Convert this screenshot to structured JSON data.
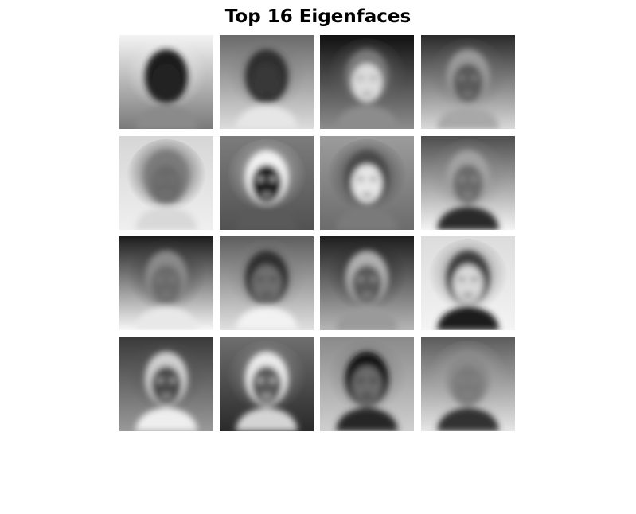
{
  "title": "Top 16 Eigenfaces",
  "grid": {
    "rows": 4,
    "cols": 4
  },
  "eigenfaces": [
    {
      "bg": [
        "#f4f4f4",
        "#7a7a7a"
      ],
      "head": "#1a1a1a",
      "face": "#222222",
      "body": "#8a8a8a",
      "glow": "#f0f0f0"
    },
    {
      "bg": [
        "#6a6a6a",
        "#dcdcdc"
      ],
      "head": "#2e2e2e",
      "face": "#383838",
      "body": "#e6e6e6",
      "glow": "#7a7a7a"
    },
    {
      "bg": [
        "#111111",
        "#8c8c8c"
      ],
      "head": "#7a7a7a",
      "face": "#dcdcdc",
      "body": "#8c8c8c",
      "glow": "#6a6a6a"
    },
    {
      "bg": [
        "#2a2a2a",
        "#d9d9d9"
      ],
      "head": "#9a9a9a",
      "face": "#5a5a5a",
      "body": "#a8a8a8",
      "glow": "#6e6e6e"
    },
    {
      "bg": [
        "#d6d6d6",
        "#efefef"
      ],
      "head": "#7a7a7a",
      "face": "#6a6a6a",
      "body": "#d8d8d8",
      "glow": "#111111"
    },
    {
      "bg": [
        "#7c7c7c",
        "#525252"
      ],
      "head": "#f2f2f2",
      "face": "#1a1a1a",
      "body": "#5a5a5a",
      "glow": "#cfcfcf"
    },
    {
      "bg": [
        "#9c9c9c",
        "#6c6c6c"
      ],
      "head": "#4a4a4a",
      "face": "#e6e6e6",
      "body": "#7a7a7a",
      "glow": "#2f2f2f"
    },
    {
      "bg": [
        "#4e4e4e",
        "#f4f4f4"
      ],
      "head": "#a2a2a2",
      "face": "#6a6a6a",
      "body": "#2b2b2b",
      "glow": "#8a8a8a"
    },
    {
      "bg": [
        "#1c1c1c",
        "#f6f6f6"
      ],
      "head": "#8a8a8a",
      "face": "#6a6a6a",
      "body": "#e8e8e8",
      "glow": "#3c3c3c"
    },
    {
      "bg": [
        "#5e5e5e",
        "#e0e0e0"
      ],
      "head": "#2e2e2e",
      "face": "#6e6e6e",
      "body": "#f2f2f2",
      "glow": "#7c7c7c"
    },
    {
      "bg": [
        "#1e1e1e",
        "#b6b6b6"
      ],
      "head": "#b0b0b0",
      "face": "#5a5a5a",
      "body": "#9a9a9a",
      "glow": "#2a2a2a"
    },
    {
      "bg": [
        "#dcdcdc",
        "#f4f4f4"
      ],
      "head": "#3e3e3e",
      "face": "#d8d8d8",
      "body": "#1a1a1a",
      "glow": "#6a6a6a"
    },
    {
      "bg": [
        "#3a3a3a",
        "#999999"
      ],
      "head": "#cfcfcf",
      "face": "#4c4c4c",
      "body": "#eeeeee",
      "glow": "#555555"
    },
    {
      "bg": [
        "#6e6e6e",
        "#2a2a2a"
      ],
      "head": "#eaeaea",
      "face": "#5a5a5a",
      "body": "#d4d4d4",
      "glow": "#9a9a9a"
    },
    {
      "bg": [
        "#8a8a8a",
        "#cfcfcf"
      ],
      "head": "#141414",
      "face": "#6a6a6a",
      "body": "#262626",
      "glow": "#777777"
    },
    {
      "bg": [
        "#5c5c5c",
        "#e6e6e6"
      ],
      "head": "#8a8a8a",
      "face": "#7a7a7a",
      "body": "#333333",
      "glow": "#aaaaaa"
    }
  ]
}
